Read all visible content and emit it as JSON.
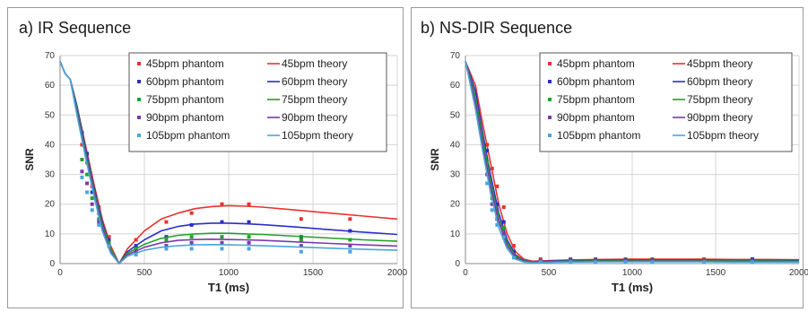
{
  "colors": {
    "45": "#e8322f",
    "60": "#2b2fc8",
    "75": "#22a22a",
    "90": "#7c3aa8",
    "105": "#4aa6d9"
  },
  "chart_data": [
    {
      "type": "line",
      "title": "a) IR Sequence",
      "xlabel": "T1 (ms)",
      "ylabel": "SNR",
      "xlim": [
        0,
        2000
      ],
      "ylim": [
        0,
        70
      ],
      "xticks": [
        0,
        500,
        1000,
        1500,
        2000
      ],
      "yticks": [
        0,
        10,
        20,
        30,
        40,
        50,
        60,
        70
      ],
      "grid": true,
      "legend": "top-right",
      "series": [
        {
          "name": "45bpm phantom",
          "kind": "points",
          "color": "45",
          "x": [
            130,
            160,
            190,
            230,
            290,
            450,
            630,
            780,
            960,
            1120,
            1430,
            1720
          ],
          "y": [
            40,
            34,
            26,
            19,
            9,
            8,
            14,
            17,
            20,
            20,
            15,
            15
          ]
        },
        {
          "name": "45bpm theory",
          "kind": "line",
          "color": "45",
          "x": [
            0,
            30,
            60,
            100,
            150,
            200,
            250,
            300,
            350,
            400,
            500,
            600,
            700,
            800,
            900,
            1000,
            1100,
            1200,
            1400,
            1600,
            1800,
            2000
          ],
          "y": [
            68,
            64,
            62,
            53,
            40,
            27,
            15,
            6,
            0,
            5,
            11,
            15,
            17,
            18.5,
            19.2,
            19.5,
            19.3,
            19,
            18,
            17,
            16,
            15
          ]
        },
        {
          "name": "60bpm  phantom",
          "kind": "points",
          "color": "60",
          "x": [
            130,
            160,
            190,
            230,
            290,
            450,
            630,
            780,
            960,
            1120,
            1430,
            1720
          ],
          "y": [
            44,
            37,
            24,
            17,
            8,
            6,
            9,
            13,
            14,
            14,
            9,
            11
          ]
        },
        {
          "name": "60bpm theory",
          "kind": "line",
          "color": "60",
          "x": [
            0,
            30,
            60,
            100,
            150,
            200,
            250,
            300,
            350,
            400,
            500,
            600,
            700,
            800,
            900,
            1000,
            1100,
            1200,
            1400,
            1600,
            1800,
            2000
          ],
          "y": [
            68,
            64,
            62,
            53,
            39,
            26,
            14,
            5,
            0,
            4,
            8,
            11,
            12.5,
            13.3,
            13.6,
            13.6,
            13.4,
            13.1,
            12.3,
            11.4,
            10.6,
            9.8
          ]
        },
        {
          "name": "75bpm phantom",
          "kind": "points",
          "color": "75",
          "x": [
            130,
            160,
            190,
            230,
            290,
            450,
            630,
            780,
            960,
            1120,
            1430,
            1720
          ],
          "y": [
            35,
            30,
            22,
            15,
            7,
            5,
            8,
            9,
            9,
            9,
            8,
            8
          ]
        },
        {
          "name": "75bpm theory",
          "kind": "line",
          "color": "75",
          "x": [
            0,
            30,
            60,
            100,
            150,
            200,
            250,
            300,
            350,
            400,
            500,
            600,
            700,
            800,
            900,
            1000,
            1100,
            1200,
            1400,
            1600,
            1800,
            2000
          ],
          "y": [
            68,
            64,
            62,
            52,
            38,
            25,
            13,
            5,
            0,
            3.5,
            6.5,
            8.5,
            9.5,
            10,
            10.2,
            10.2,
            10,
            9.8,
            9.2,
            8.6,
            8,
            7.5
          ]
        },
        {
          "name": "90bpm phantom",
          "kind": "points",
          "color": "90",
          "x": [
            130,
            160,
            190,
            230,
            290,
            450,
            630,
            780,
            960,
            1120,
            1430,
            1720
          ],
          "y": [
            31,
            27,
            20,
            14,
            6,
            4,
            6,
            7,
            7,
            7,
            6,
            6
          ]
        },
        {
          "name": "90bpm theory",
          "kind": "line",
          "color": "90",
          "x": [
            0,
            30,
            60,
            100,
            150,
            200,
            250,
            300,
            350,
            400,
            500,
            600,
            700,
            800,
            900,
            1000,
            1100,
            1200,
            1400,
            1600,
            1800,
            2000
          ],
          "y": [
            68,
            64,
            62,
            51,
            37,
            24,
            12,
            4,
            0,
            3,
            5.5,
            7,
            7.8,
            8.1,
            8.2,
            8.1,
            8,
            7.8,
            7.3,
            6.8,
            6.3,
            5.9
          ]
        },
        {
          "name": "105bpm phantom",
          "kind": "points",
          "color": "105",
          "x": [
            130,
            160,
            190,
            230,
            290,
            450,
            630,
            780,
            960,
            1120,
            1430,
            1720
          ],
          "y": [
            29,
            24,
            18,
            13,
            6,
            3,
            5,
            5,
            5,
            5,
            4,
            4
          ]
        },
        {
          "name": "105bpm theory",
          "kind": "line",
          "color": "105",
          "x": [
            0,
            30,
            60,
            100,
            150,
            200,
            250,
            300,
            350,
            400,
            500,
            600,
            700,
            800,
            900,
            1000,
            1100,
            1200,
            1400,
            1600,
            1800,
            2000
          ],
          "y": [
            68,
            64,
            62,
            50,
            36,
            23,
            11,
            3.5,
            0,
            2.5,
            4.5,
            5.5,
            6,
            6.3,
            6.4,
            6.3,
            6.2,
            6,
            5.6,
            5.2,
            4.8,
            4.5
          ]
        }
      ]
    },
    {
      "type": "line",
      "title": "b) NS-DIR Sequence",
      "xlabel": "T1 (ms)",
      "ylabel": "SNR",
      "xlim": [
        0,
        2000
      ],
      "ylim": [
        0,
        70
      ],
      "xticks": [
        0,
        500,
        1000,
        1500,
        2000
      ],
      "yticks": [
        0,
        10,
        20,
        30,
        40,
        50,
        60,
        70
      ],
      "grid": true,
      "legend": "top-right",
      "series": [
        {
          "name": "45bpm phantom",
          "kind": "points",
          "color": "45",
          "x": [
            130,
            160,
            190,
            230,
            290,
            450,
            630,
            780,
            960,
            1120,
            1430,
            1720
          ],
          "y": [
            40,
            32,
            26,
            19,
            6,
            1.5,
            1.5,
            1.5,
            1.5,
            1.5,
            1.5,
            1.5
          ]
        },
        {
          "name": "45bpm theory",
          "kind": "line",
          "color": "45",
          "x": [
            0,
            30,
            60,
            100,
            150,
            200,
            250,
            300,
            350,
            400,
            500,
            600,
            800,
            1000,
            1200,
            1400,
            1600,
            1800,
            2000
          ],
          "y": [
            68,
            64,
            60,
            48,
            34,
            20,
            10,
            4,
            1.5,
            0.8,
            1,
            1.2,
            1.4,
            1.5,
            1.5,
            1.5,
            1.4,
            1.4,
            1.3
          ]
        },
        {
          "name": "60bpm phantom",
          "kind": "points",
          "color": "60",
          "x": [
            130,
            160,
            190,
            230,
            290,
            450,
            630,
            780,
            960,
            1120,
            1430,
            1720
          ],
          "y": [
            38,
            24,
            20,
            14,
            4,
            1,
            1.2,
            1.2,
            1.2,
            1.2,
            1,
            1.5
          ]
        },
        {
          "name": "60bpm theory",
          "kind": "line",
          "color": "60",
          "x": [
            0,
            30,
            60,
            100,
            150,
            200,
            250,
            300,
            350,
            400,
            500,
            600,
            800,
            1000,
            1200,
            1400,
            1600,
            1800,
            2000
          ],
          "y": [
            68,
            63,
            58,
            45,
            30,
            17,
            8,
            3,
            1,
            0.6,
            0.8,
            1,
            1.1,
            1.2,
            1.2,
            1.2,
            1.1,
            1.1,
            1
          ]
        },
        {
          "name": "75bpm phantom",
          "kind": "points",
          "color": "75",
          "x": [
            130,
            160,
            190,
            230,
            290,
            450,
            630,
            780,
            960,
            1120,
            1430,
            1720
          ],
          "y": [
            34,
            22,
            17,
            12,
            3,
            1,
            1,
            1,
            1,
            1,
            1,
            1
          ]
        },
        {
          "name": "75bpm theory",
          "kind": "line",
          "color": "75",
          "x": [
            0,
            30,
            60,
            100,
            150,
            200,
            250,
            300,
            350,
            400,
            500,
            600,
            800,
            1000,
            1200,
            1400,
            1600,
            1800,
            2000
          ],
          "y": [
            68,
            62,
            56,
            43,
            28,
            15,
            7,
            2.5,
            0.8,
            0.5,
            0.6,
            0.8,
            0.9,
            1,
            1,
            1,
            0.9,
            0.9,
            0.8
          ]
        },
        {
          "name": "90bpm phantom",
          "kind": "points",
          "color": "90",
          "x": [
            130,
            160,
            190,
            230,
            290,
            450,
            630,
            780,
            960,
            1120,
            1430,
            1720
          ],
          "y": [
            30,
            20,
            15,
            10,
            3,
            0.8,
            0.8,
            0.8,
            0.8,
            0.8,
            0.8,
            0.8
          ]
        },
        {
          "name": "90bpm theory",
          "kind": "line",
          "color": "90",
          "x": [
            0,
            30,
            60,
            100,
            150,
            200,
            250,
            300,
            350,
            400,
            500,
            600,
            800,
            1000,
            1200,
            1400,
            1600,
            1800,
            2000
          ],
          "y": [
            68,
            61,
            54,
            41,
            26,
            14,
            6,
            2,
            0.6,
            0.4,
            0.5,
            0.6,
            0.7,
            0.8,
            0.8,
            0.8,
            0.7,
            0.7,
            0.6
          ]
        },
        {
          "name": "105bpm phantom",
          "kind": "points",
          "color": "105",
          "x": [
            130,
            160,
            190,
            230,
            290,
            450,
            630,
            780,
            960,
            1120,
            1430,
            1720
          ],
          "y": [
            27,
            18,
            13,
            9,
            2,
            0.5,
            0.5,
            0.5,
            0.5,
            0.5,
            0.5,
            0.5
          ]
        },
        {
          "name": "105bpm theory",
          "kind": "line",
          "color": "105",
          "x": [
            0,
            30,
            60,
            100,
            150,
            200,
            250,
            300,
            350,
            400,
            500,
            600,
            800,
            1000,
            1200,
            1400,
            1600,
            1800,
            2000
          ],
          "y": [
            68,
            60,
            52,
            39,
            24,
            12,
            5,
            1.5,
            0.5,
            0.3,
            0.4,
            0.5,
            0.6,
            0.6,
            0.6,
            0.6,
            0.5,
            0.5,
            0.5
          ]
        }
      ]
    }
  ]
}
